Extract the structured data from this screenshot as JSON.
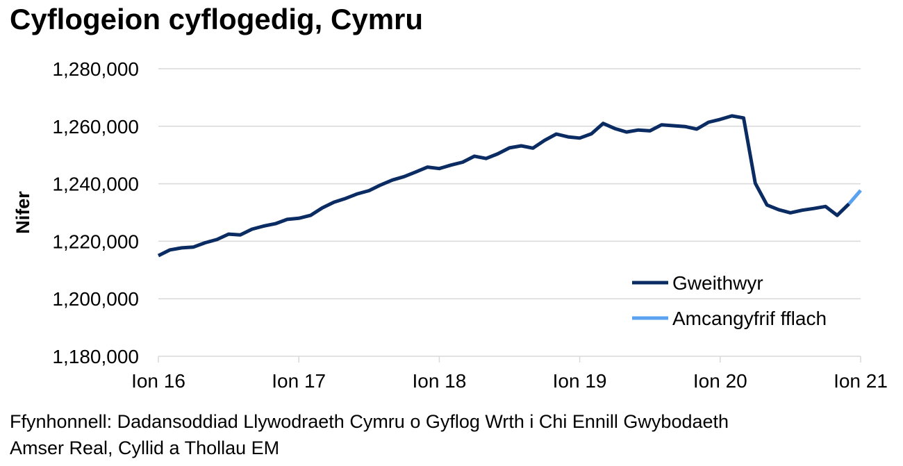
{
  "chart_data": {
    "type": "line",
    "title": "Cyflogeion cyflogedig, Cymru",
    "ylabel": "Nifer",
    "xlabel": "",
    "ylim": [
      1180000,
      1280000
    ],
    "yticks": [
      1180000,
      1200000,
      1220000,
      1240000,
      1260000,
      1280000
    ],
    "ytick_labels": [
      "1,180,000",
      "1,200,000",
      "1,220,000",
      "1,240,000",
      "1,260,000",
      "1,280,000"
    ],
    "xlim": [
      0,
      60
    ],
    "xticks": [
      0,
      12,
      24,
      36,
      48,
      60
    ],
    "xtick_labels": [
      "Ion 16",
      "Ion 17",
      "Ion 18",
      "Ion 19",
      "Ion 20",
      "Ion 21"
    ],
    "grid": "horizontal",
    "legend_position": "bottom-right",
    "series": [
      {
        "name": "Gweithwyr",
        "color": "#0b2c63",
        "x": [
          0,
          1,
          2,
          3,
          4,
          5,
          6,
          7,
          8,
          9,
          10,
          11,
          12,
          13,
          14,
          15,
          16,
          17,
          18,
          19,
          20,
          21,
          22,
          23,
          24,
          25,
          26,
          27,
          28,
          29,
          30,
          31,
          32,
          33,
          34,
          35,
          36,
          37,
          38,
          39,
          40,
          41,
          42,
          43,
          44,
          45,
          46,
          47,
          48,
          49,
          50,
          51,
          52,
          53,
          54,
          55,
          56,
          57,
          58,
          59
        ],
        "values": [
          1215000,
          1217000,
          1217700,
          1218000,
          1219500,
          1220600,
          1222500,
          1222200,
          1224200,
          1225300,
          1226100,
          1227600,
          1228000,
          1229000,
          1231600,
          1233600,
          1234900,
          1236500,
          1237600,
          1239600,
          1241300,
          1242500,
          1244100,
          1245800,
          1245300,
          1246500,
          1247500,
          1249600,
          1248800,
          1250400,
          1252500,
          1253200,
          1252400,
          1255100,
          1257300,
          1256300,
          1255900,
          1257400,
          1261000,
          1259200,
          1258000,
          1258700,
          1258400,
          1260500,
          1260200,
          1259900,
          1259000,
          1261400,
          1262400,
          1263600,
          1262900,
          1240200,
          1232600,
          1231000,
          1229900,
          1230800,
          1231400,
          1232100,
          1229000,
          1233000
        ]
      },
      {
        "name": "Amcangyfrif fflach",
        "color": "#5aa2f0",
        "x": [
          59,
          60
        ],
        "values": [
          1233000,
          1237700
        ]
      }
    ]
  },
  "source": {
    "line1": "Ffynhonnell: Dadansoddiad Llywodraeth Cymru o Gyflog Wrth i Chi Ennill Gwybodaeth",
    "line2": "Amser Real, Cyllid a Thollau EM"
  }
}
